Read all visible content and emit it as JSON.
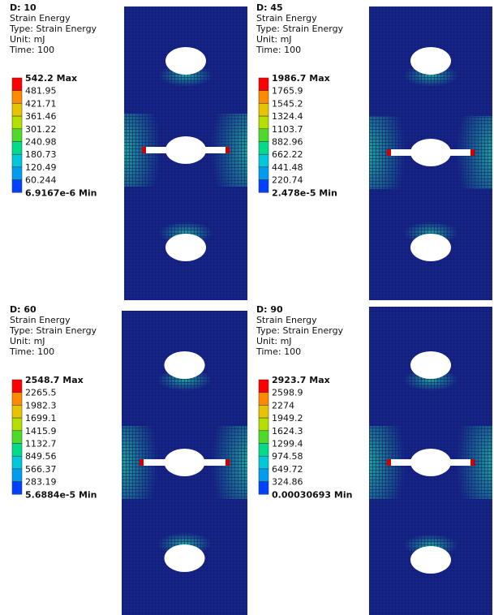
{
  "panels": [
    {
      "title": "D: 10",
      "lines": [
        "Strain Energy",
        "Type: Strain Energy",
        "Unit: mJ",
        "Time: 100"
      ],
      "legend": [
        "542.2 Max",
        "481.95",
        "421.71",
        "361.46",
        "301.22",
        "240.98",
        "180.73",
        "120.49",
        "60.244",
        "6.9167e-6 Min"
      ]
    },
    {
      "title": "D: 45",
      "lines": [
        "Strain Energy",
        "Type: Strain Energy",
        "Unit: mJ",
        "Time: 100"
      ],
      "legend": [
        "1986.7 Max",
        "1765.9",
        "1545.2",
        "1324.4",
        "1103.7",
        "882.96",
        "662.22",
        "441.48",
        "220.74",
        "2.478e-5 Min"
      ]
    },
    {
      "title": "D: 60",
      "lines": [
        "Strain Energy",
        "Type: Strain Energy",
        "Unit: mJ",
        "Time: 100"
      ],
      "legend": [
        "2548.7 Max",
        "2265.5",
        "1982.3",
        "1699.1",
        "1415.9",
        "1132.7",
        "849.56",
        "566.37",
        "283.19",
        "5.6884e-5 Min"
      ]
    },
    {
      "title": "D: 90",
      "lines": [
        "Strain Energy",
        "Type: Strain Energy",
        "Unit: mJ",
        "Time: 100"
      ],
      "legend": [
        "2923.7 Max",
        "2598.9",
        "2274",
        "1949.2",
        "1624.3",
        "1299.4",
        "974.58",
        "649.72",
        "324.86",
        "0.00030693 Min"
      ]
    }
  ]
}
